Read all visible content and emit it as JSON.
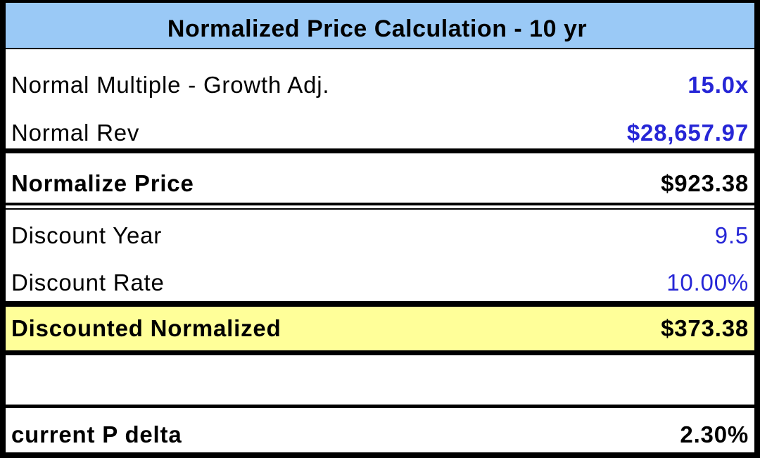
{
  "title": "Normalized Price Calculation - 10 yr",
  "rows": [
    {
      "label": "Normal Multiple - Growth Adj.",
      "value": "15.0x"
    },
    {
      "label": "Normal Rev",
      "value": "$28,657.97"
    },
    {
      "label": "Normalize Price",
      "value": "$923.38"
    },
    {
      "label": "Discount Year",
      "value": "9.5"
    },
    {
      "label": "Discount Rate",
      "value": "10.00%"
    },
    {
      "label": "Discounted Normalized",
      "value": "$373.38"
    },
    {
      "label": "",
      "value": ""
    },
    {
      "label": "current P delta",
      "value": "2.30%"
    }
  ],
  "colors": {
    "header-bg": "#9AC9F6",
    "highlight-bg": "#FFFF99",
    "value-blue": "#2626D6",
    "border-black": "#000000"
  }
}
